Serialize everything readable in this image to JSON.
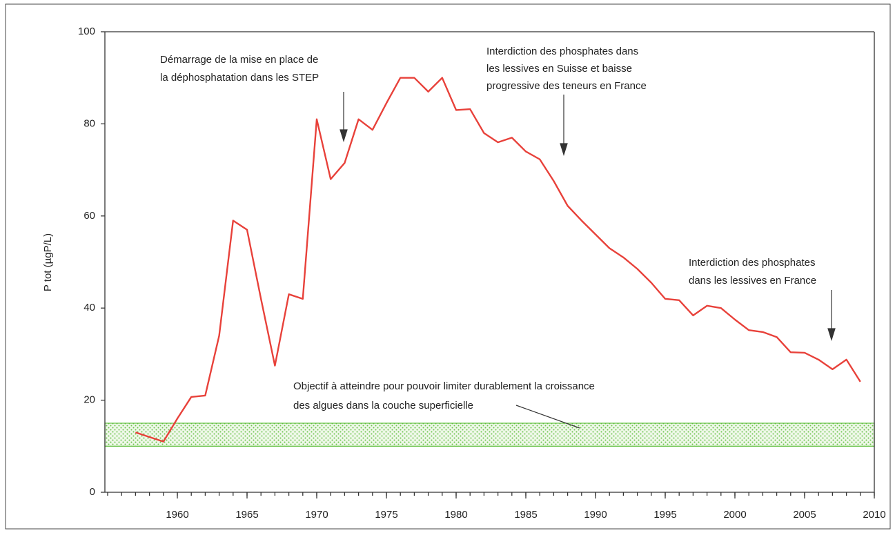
{
  "chart_data": {
    "type": "line",
    "y_label": "P tot  (µgP/L)",
    "x": [
      1957,
      1958,
      1959,
      1960,
      1961,
      1962,
      1963,
      1964,
      1965,
      1966,
      1967,
      1968,
      1969,
      1970,
      1971,
      1972,
      1973,
      1974,
      1975,
      1976,
      1977,
      1978,
      1979,
      1980,
      1981,
      1982,
      1983,
      1984,
      1985,
      1986,
      1987,
      1988,
      1989,
      1990,
      1991,
      1992,
      1993,
      1994,
      1995,
      1996,
      1997,
      1998,
      1999,
      2000,
      2001,
      2002,
      2003,
      2004,
      2005,
      2006,
      2007,
      2008,
      2009
    ],
    "series": [
      {
        "color": "#e8413a",
        "values": [
          13,
          12,
          11,
          16,
          20.7,
          21,
          34,
          59,
          57,
          42,
          27.5,
          43,
          42,
          81,
          68,
          71.5,
          81,
          78.7,
          84.5,
          90,
          90,
          87,
          90,
          83,
          83.2,
          78,
          76,
          77,
          74,
          72.3,
          67.6,
          62.2,
          59,
          56,
          53,
          51,
          48.5,
          45.5,
          42,
          41.7,
          38.4,
          40.5,
          40,
          37.5,
          35.2,
          34.8,
          33.7,
          30.4,
          30.3,
          28.8,
          26.7,
          28.8,
          24
        ]
      }
    ],
    "band": {
      "from": 10,
      "to": 15,
      "color": "#5cbf3a"
    },
    "xlim": [
      1955,
      2010
    ],
    "xticks": [
      1960,
      1965,
      1970,
      1975,
      1980,
      1985,
      1990,
      1995,
      2000,
      2005,
      2010
    ],
    "ylim": [
      0,
      100
    ],
    "yticks": [
      0,
      20,
      40,
      60,
      80,
      100
    ],
    "annotations": [
      {
        "lines": [
          "Démarrage de la mise en place de",
          "la déphosphatation dans les STEP"
        ]
      },
      {
        "lines": [
          "Interdiction des phosphates dans",
          "les lessives en Suisse et baisse",
          "progressive des teneurs en France"
        ]
      },
      {
        "lines": [
          "Interdiction des phosphates",
          "dans les lessives en France"
        ]
      },
      {
        "lines": [
          "Objectif à atteindre pour pouvoir limiter durablement la croissance",
          "des algues dans la couche superficielle"
        ]
      }
    ]
  }
}
